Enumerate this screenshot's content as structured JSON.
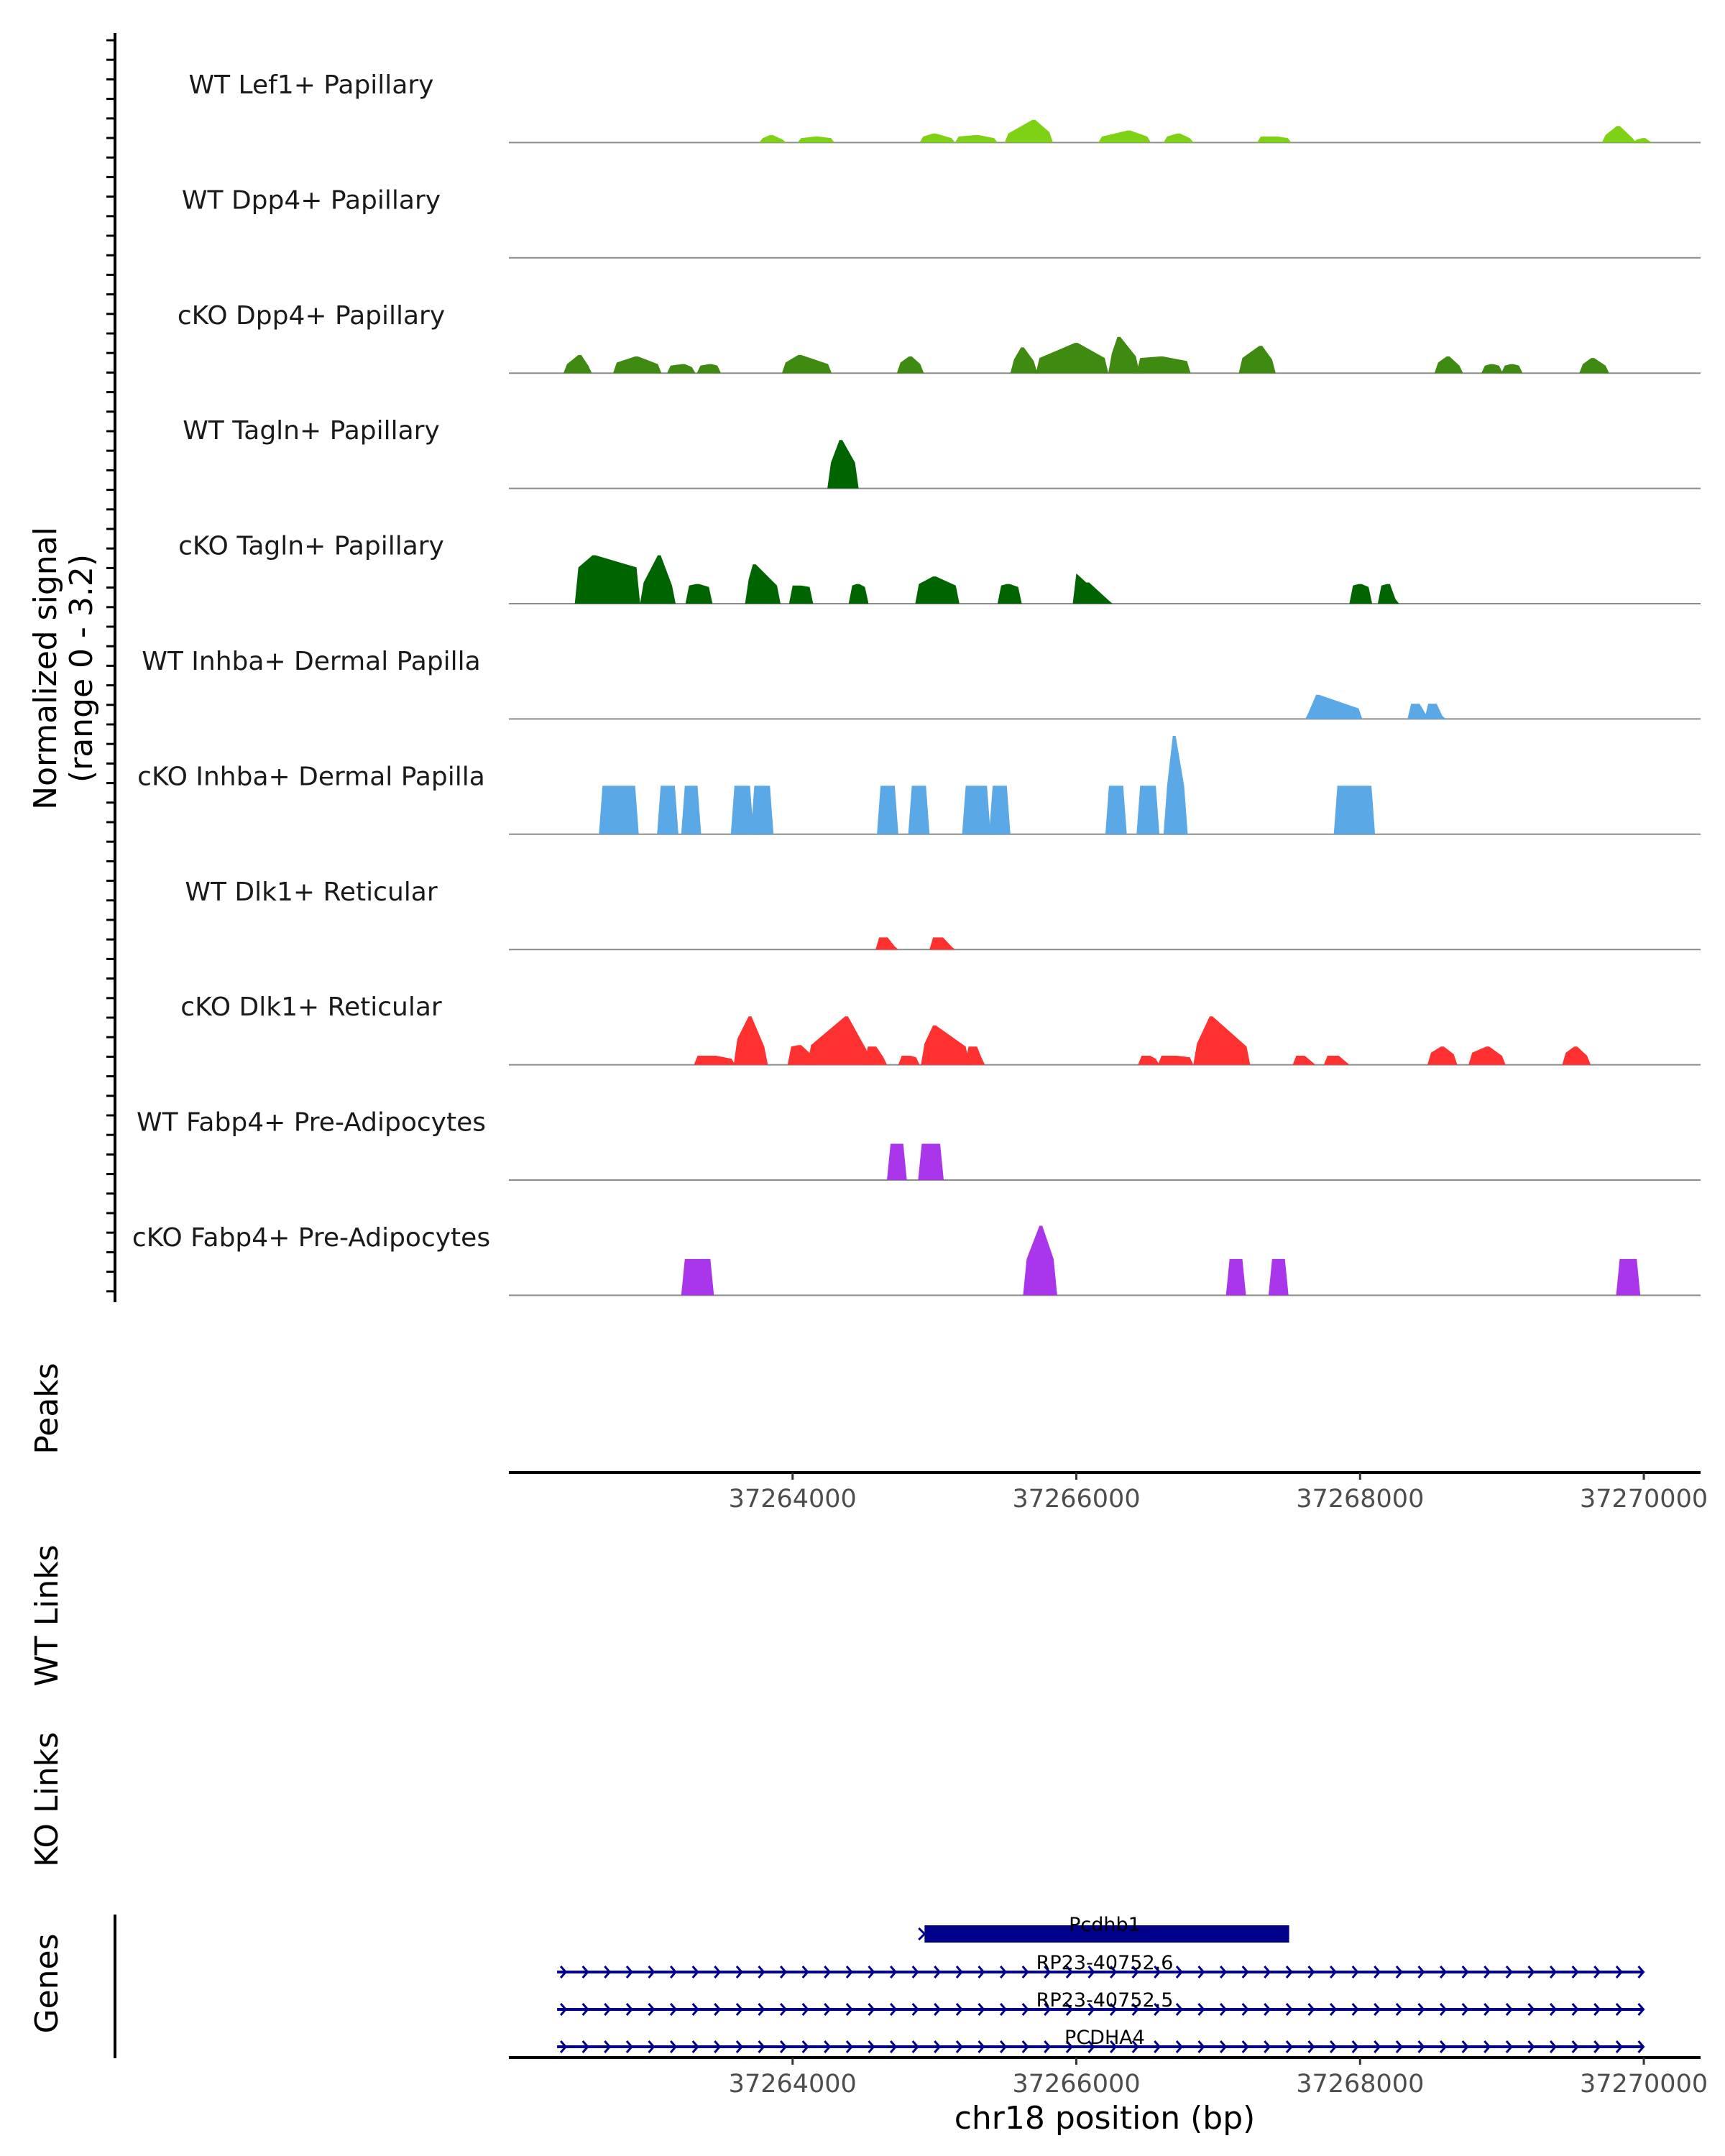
{
  "chart_data": {
    "type": "area",
    "title": "",
    "xlabel": "chr18 position (bp)",
    "signal_axis_label": [
      "Normalized signal",
      "(range 0 - 3.2)"
    ],
    "ylim": [
      0,
      3.2
    ],
    "xlim": [
      37262000,
      37270400
    ],
    "x_ticks": [
      37264000,
      37266000,
      37268000,
      37270000
    ],
    "x_tick_labels": [
      "37264000",
      "37266000",
      "37268000",
      "37270000"
    ],
    "panel_labels": {
      "peaks": "Peaks",
      "wt_links": "WT Links",
      "ko_links": "KO Links",
      "genes": "Genes"
    },
    "series": [
      {
        "name": "WT Lef1+ Papillary",
        "color": "#7fd116",
        "peaks": [
          {
            "x": [
              37263790,
              37263850,
              37263930
            ],
            "y": [
              0.3,
              0.5,
              0.2
            ]
          },
          {
            "x": [
              37264060,
              37264170,
              37264270
            ],
            "y": [
              0.3,
              0.4,
              0.3
            ]
          },
          {
            "x": [
              37264920,
              37265000,
              37265120
            ],
            "y": [
              0.4,
              0.6,
              0.3
            ]
          },
          {
            "x": [
              37265170,
              37265300,
              37265420
            ],
            "y": [
              0.4,
              0.5,
              0.3
            ]
          },
          {
            "x": [
              37265520,
              37265700,
              37265810
            ],
            "y": [
              0.6,
              1.5,
              0.7
            ]
          },
          {
            "x": [
              37266180,
              37266370,
              37266500
            ],
            "y": [
              0.4,
              0.8,
              0.4
            ]
          },
          {
            "x": [
              37266640,
              37266720,
              37266800
            ],
            "y": [
              0.4,
              0.6,
              0.3
            ]
          },
          {
            "x": [
              37267300,
              37267410,
              37267490
            ],
            "y": [
              0.4,
              0.4,
              0.3
            ]
          },
          {
            "x": [
              37269730,
              37269820,
              37269920
            ],
            "y": [
              0.5,
              1.1,
              0.3
            ]
          },
          {
            "x": [
              37269950,
              37270000,
              37270040
            ],
            "y": [
              0.2,
              0.3,
              0.1
            ]
          }
        ]
      },
      {
        "name": "WT Dpp4+ Papillary",
        "color": "#3f8a10",
        "peaks": []
      },
      {
        "name": "cKO Dpp4+ Papillary",
        "color": "#3f8a10",
        "peaks": [
          {
            "x": [
              37262410,
              37262500,
              37262560
            ],
            "y": [
              0.6,
              1.2,
              0.5
            ]
          },
          {
            "x": [
              37262760,
              37262900,
              37263050
            ],
            "y": [
              0.7,
              1.1,
              0.6
            ]
          },
          {
            "x": [
              37263140,
              37263230,
              37263290
            ],
            "y": [
              0.5,
              0.6,
              0.4
            ]
          },
          {
            "x": [
              37263350,
              37263420,
              37263470
            ],
            "y": [
              0.5,
              0.6,
              0.5
            ]
          },
          {
            "x": [
              37263950,
              37264050,
              37264250
            ],
            "y": [
              0.7,
              1.2,
              0.6
            ]
          },
          {
            "x": [
              37264760,
              37264830,
              37264900
            ],
            "y": [
              0.7,
              1.1,
              0.6
            ]
          },
          {
            "x": [
              37265560,
              37265620,
              37265700
            ],
            "y": [
              0.9,
              1.7,
              0.8
            ]
          },
          {
            "x": [
              37265740,
              37266000,
              37266200
            ],
            "y": [
              1.0,
              2.0,
              1.0
            ]
          },
          {
            "x": [
              37266250,
              37266300,
              37266420
            ],
            "y": [
              1.3,
              2.4,
              1.1
            ]
          },
          {
            "x": [
              37266450,
              37266600,
              37266780
            ],
            "y": [
              1.0,
              1.1,
              0.8
            ]
          },
          {
            "x": [
              37267170,
              37267300,
              37267380
            ],
            "y": [
              1.0,
              1.8,
              0.9
            ]
          },
          {
            "x": [
              37268550,
              37268620,
              37268700
            ],
            "y": [
              0.7,
              1.1,
              0.5
            ]
          },
          {
            "x": [
              37268880,
              37268930,
              37268980
            ],
            "y": [
              0.5,
              0.6,
              0.5
            ]
          },
          {
            "x": [
              37269020,
              37269070,
              37269120
            ],
            "y": [
              0.5,
              0.6,
              0.5
            ]
          },
          {
            "x": [
              37269570,
              37269640,
              37269730
            ],
            "y": [
              0.6,
              1.0,
              0.5
            ]
          }
        ]
      },
      {
        "name": "WT Tagln+ Papillary",
        "color": "#006400",
        "peaks": [
          {
            "x": [
              37264270,
              37264340,
              37264440
            ],
            "y": [
              1.7,
              3.2,
              1.7
            ]
          }
        ]
      },
      {
        "name": "cKO Tagln+ Papillary",
        "color": "#006400",
        "peaks": [
          {
            "x": [
              37262490,
              37262600,
              37262900
            ],
            "y": [
              2.4,
              3.2,
              2.4
            ]
          },
          {
            "x": [
              37262950,
              37263060,
              37263150
            ],
            "y": [
              1.4,
              3.2,
              1.2
            ]
          },
          {
            "x": [
              37263270,
              37263330,
              37263410
            ],
            "y": [
              1.2,
              1.3,
              1.1
            ]
          },
          {
            "x": [
              37263690,
              37263730,
              37263890
            ],
            "y": [
              1.6,
              2.6,
              1.2
            ]
          },
          {
            "x": [
              37264000,
              37264050,
              37264120
            ],
            "y": [
              1.2,
              1.2,
              1.1
            ]
          },
          {
            "x": [
              37264420,
              37264460,
              37264510
            ],
            "y": [
              1.2,
              1.3,
              1.1
            ]
          },
          {
            "x": [
              37264890,
              37265000,
              37265150
            ],
            "y": [
              1.3,
              1.8,
              1.2
            ]
          },
          {
            "x": [
              37265470,
              37265520,
              37265590
            ],
            "y": [
              1.2,
              1.3,
              1.1
            ]
          },
          {
            "x": [
              37266000,
              37266080,
              37266230
            ],
            "y": [
              2.0,
              1.4,
              0.2
            ]
          },
          {
            "x": [
              37267950,
              37268000,
              37268060
            ],
            "y": [
              1.2,
              1.3,
              1.1
            ]
          },
          {
            "x": [
              37268150,
              37268200,
              37268250
            ],
            "y": [
              1.2,
              1.3,
              0.3
            ]
          }
        ]
      },
      {
        "name": "WT Inhba+ Dermal Papilla",
        "color": "#5aa9e6",
        "peaks": [
          {
            "x": [
              37267640,
              37267700,
              37267990
            ],
            "y": [
              0.5,
              1.6,
              0.7
            ]
          },
          {
            "x": [
              37268360,
              37268410,
              37268470
            ],
            "y": [
              1.0,
              1.0,
              0.2
            ]
          },
          {
            "x": [
              37268480,
              37268530,
              37268580
            ],
            "y": [
              1.0,
              1.0,
              0.2
            ]
          }
        ]
      },
      {
        "name": "cKO Inhba+ Dermal Papilla",
        "color": "#5aa9e6",
        "peaks": [
          {
            "x": [
              37262660,
              37262750,
              37262890
            ],
            "y": [
              3.2,
              3.2,
              3.2
            ]
          },
          {
            "x": [
              37263070,
              37263100,
              37263170
            ],
            "y": [
              3.2,
              3.2,
              3.2
            ]
          },
          {
            "x": [
              37263240,
              37263290,
              37263330
            ],
            "y": [
              3.2,
              3.2,
              3.2
            ]
          },
          {
            "x": [
              37263590,
              37263650,
              37263700
            ],
            "y": [
              3.2,
              3.2,
              3.2
            ]
          },
          {
            "x": [
              37263730,
              37263780,
              37263840
            ],
            "y": [
              3.2,
              3.2,
              3.2
            ]
          },
          {
            "x": [
              37264620,
              37264670,
              37264720
            ],
            "y": [
              3.2,
              3.2,
              3.2
            ]
          },
          {
            "x": [
              37264840,
              37264890,
              37264940
            ],
            "y": [
              3.2,
              3.2,
              3.2
            ]
          },
          {
            "x": [
              37265220,
              37265300,
              37265370
            ],
            "y": [
              3.2,
              3.2,
              3.2
            ]
          },
          {
            "x": [
              37265410,
              37265460,
              37265510
            ],
            "y": [
              3.2,
              3.2,
              3.2
            ]
          },
          {
            "x": [
              37266230,
              37266280,
              37266330
            ],
            "y": [
              3.2,
              3.2,
              3.2
            ]
          },
          {
            "x": [
              37266450,
              37266500,
              37266560
            ],
            "y": [
              3.2,
              3.2,
              3.2
            ]
          },
          {
            "x": [
              37266640,
              37266690,
              37266760
            ],
            "y": [
              3.2,
              6.5,
              3.2
            ]
          },
          {
            "x": [
              37267840,
              37267950,
              37268080
            ],
            "y": [
              3.2,
              3.2,
              3.2
            ]
          }
        ]
      },
      {
        "name": "WT Dlk1+ Reticular",
        "color": "#ff3030",
        "peaks": [
          {
            "x": [
              37264610,
              37264660,
              37264720
            ],
            "y": [
              0.8,
              0.8,
              0.2
            ]
          },
          {
            "x": [
              37264990,
              37265050,
              37265120
            ],
            "y": [
              0.8,
              0.8,
              0.2
            ]
          }
        ]
      },
      {
        "name": "cKO Dlk1+ Reticular",
        "color": "#ff3030",
        "peaks": [
          {
            "x": [
              37263330,
              37263450,
              37263570
            ],
            "y": [
              0.6,
              0.6,
              0.4
            ]
          },
          {
            "x": [
              37263610,
              37263700,
              37263800
            ],
            "y": [
              1.7,
              3.2,
              1.2
            ]
          },
          {
            "x": [
              37263990,
              37264050,
              37264130
            ],
            "y": [
              1.2,
              1.3,
              0.7
            ]
          },
          {
            "x": [
              37264130,
              37264380,
              37264520
            ],
            "y": [
              1.3,
              3.2,
              1.0
            ]
          },
          {
            "x": [
              37264530,
              37264580,
              37264640
            ],
            "y": [
              1.2,
              1.2,
              0.5
            ]
          },
          {
            "x": [
              37264770,
              37264820,
              37264870
            ],
            "y": [
              0.6,
              0.6,
              0.5
            ]
          },
          {
            "x": [
              37264930,
              37265000,
              37265220
            ],
            "y": [
              1.4,
              2.6,
              1.2
            ]
          },
          {
            "x": [
              37265240,
              37265290,
              37265330
            ],
            "y": [
              1.2,
              1.2,
              0.5
            ]
          },
          {
            "x": [
              37266460,
              37266510,
              37266560
            ],
            "y": [
              0.6,
              0.6,
              0.4
            ]
          },
          {
            "x": [
              37266600,
              37266700,
              37266800
            ],
            "y": [
              0.6,
              0.6,
              0.5
            ]
          },
          {
            "x": [
              37266850,
              37266950,
              37267200
            ],
            "y": [
              1.4,
              3.2,
              1.2
            ]
          },
          {
            "x": [
              37267550,
              37267600,
              37267660
            ],
            "y": [
              0.6,
              0.6,
              0.2
            ]
          },
          {
            "x": [
              37267770,
              37267840,
              37267900
            ],
            "y": [
              0.6,
              0.6,
              0.2
            ]
          },
          {
            "x": [
              37268500,
              37268580,
              37268660
            ],
            "y": [
              0.8,
              1.2,
              0.7
            ]
          },
          {
            "x": [
              37268790,
              37268900,
              37269000
            ],
            "y": [
              0.8,
              1.2,
              0.6
            ]
          },
          {
            "x": [
              37269450,
              37269520,
              37269600
            ],
            "y": [
              0.8,
              1.2,
              0.6
            ]
          }
        ]
      },
      {
        "name": "WT Fabp4+ Pre-Adipocytes",
        "color": "#a936ea",
        "peaks": [
          {
            "x": [
              37264690,
              37264730,
              37264780
            ],
            "y": [
              2.4,
              2.4,
              2.4
            ]
          },
          {
            "x": [
              37264910,
              37264970,
              37265040
            ],
            "y": [
              2.4,
              2.4,
              2.4
            ]
          }
        ]
      },
      {
        "name": "cKO Fabp4+ Pre-Adipocytes",
        "color": "#a936ea",
        "peaks": [
          {
            "x": [
              37263240,
              37263330,
              37263420
            ],
            "y": [
              2.4,
              2.4,
              2.4
            ]
          },
          {
            "x": [
              37265650,
              37265750,
              37265840
            ],
            "y": [
              2.4,
              4.6,
              2.4
            ]
          },
          {
            "x": [
              37267080,
              37267120,
              37267170
            ],
            "y": [
              2.4,
              2.4,
              2.4
            ]
          },
          {
            "x": [
              37267380,
              37267430,
              37267470
            ],
            "y": [
              2.4,
              2.4,
              2.4
            ]
          },
          {
            "x": [
              37269830,
              37269880,
              37269950
            ],
            "y": [
              2.4,
              2.4,
              2.4
            ]
          }
        ]
      }
    ],
    "genes": [
      {
        "name": "Pcdhb1",
        "start": 37264930,
        "end": 37267500,
        "strand": "+",
        "style": "thick"
      },
      {
        "name": "RP23-40752.6",
        "start": 37262340,
        "end": 37270000,
        "strand": "+",
        "style": "thin"
      },
      {
        "name": "RP23-40752.5",
        "start": 37262340,
        "end": 37270000,
        "strand": "+",
        "style": "thin"
      },
      {
        "name": "PCDHA4",
        "start": 37262340,
        "end": 37270000,
        "strand": "+",
        "style": "thin"
      }
    ]
  }
}
